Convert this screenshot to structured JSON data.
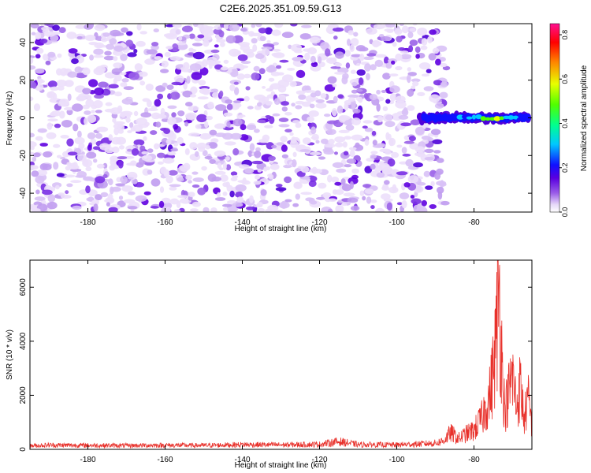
{
  "title": "C2E6.2025.351.09.59.G13",
  "chart_data": [
    {
      "type": "heatmap",
      "title": "C2E6.2025.351.09.59.G13",
      "xlabel": "Height of straight line (km)",
      "ylabel": "Frequency (Hz)",
      "xlim": [
        -195,
        -65
      ],
      "ylim": [
        -50,
        50
      ],
      "xticks": [
        -180,
        -160,
        -140,
        -120,
        -100,
        -80
      ],
      "yticks": [
        -40,
        -20,
        0,
        20,
        40
      ],
      "xtick_labels": [
        "-180",
        "-160",
        "-140",
        "-120",
        "-100",
        "-80"
      ],
      "ytick_labels": [
        "-40",
        "-20",
        "0",
        "20",
        "40"
      ],
      "noise_region_x": [
        -195,
        -87
      ],
      "signal": {
        "x_range": [
          -94,
          -66
        ],
        "frequency_hz": 0,
        "peak_amplitude": 0.8,
        "description_points": [
          {
            "x": -92,
            "amp": 0.2
          },
          {
            "x": -86,
            "amp": 0.3
          },
          {
            "x": -80,
            "amp": 0.5
          },
          {
            "x": -76,
            "amp": 0.8
          },
          {
            "x": -73,
            "amp": 0.8
          },
          {
            "x": -70,
            "amp": 0.5
          },
          {
            "x": -67,
            "amp": 0.4
          }
        ]
      },
      "colorbar": {
        "label": "Normalized spectral amplitude",
        "range": [
          0,
          0.85
        ],
        "ticks": [
          0,
          0.2,
          0.4,
          0.6,
          0.8
        ],
        "tick_labels": [
          "0.0",
          "0.2",
          "0.4",
          "0.6",
          "0.8"
        ]
      }
    },
    {
      "type": "line",
      "xlabel": "Height of straight line (km)",
      "ylabel": "SNR (10 * v/v)",
      "xlim": [
        -195,
        -65
      ],
      "ylim": [
        0,
        7000
      ],
      "xticks": [
        -180,
        -160,
        -140,
        -120,
        -100,
        -80
      ],
      "yticks": [
        0,
        2000,
        4000,
        6000
      ],
      "xtick_labels": [
        "-180",
        "-160",
        "-140",
        "-120",
        "-100",
        "-80"
      ],
      "ytick_labels": [
        "0",
        "2000",
        "4000",
        "6000"
      ],
      "color": "#e8302a",
      "series": [
        {
          "name": "SNR",
          "x": [
            -195,
            -190,
            -180,
            -170,
            -160,
            -150,
            -140,
            -130,
            -120,
            -115,
            -110,
            -100,
            -95,
            -90,
            -88,
            -86,
            -84,
            -82,
            -80,
            -78,
            -76,
            -75,
            -74,
            -73.5,
            -73,
            -72,
            -71,
            -70,
            -69,
            -68,
            -67,
            -66,
            -65
          ],
          "values": [
            150,
            180,
            170,
            160,
            175,
            165,
            200,
            190,
            210,
            330,
            200,
            190,
            220,
            260,
            350,
            700,
            450,
            650,
            800,
            1300,
            2200,
            3300,
            5200,
            7000,
            4500,
            1600,
            2400,
            3100,
            1800,
            2700,
            1300,
            2100,
            1100
          ]
        }
      ]
    }
  ]
}
